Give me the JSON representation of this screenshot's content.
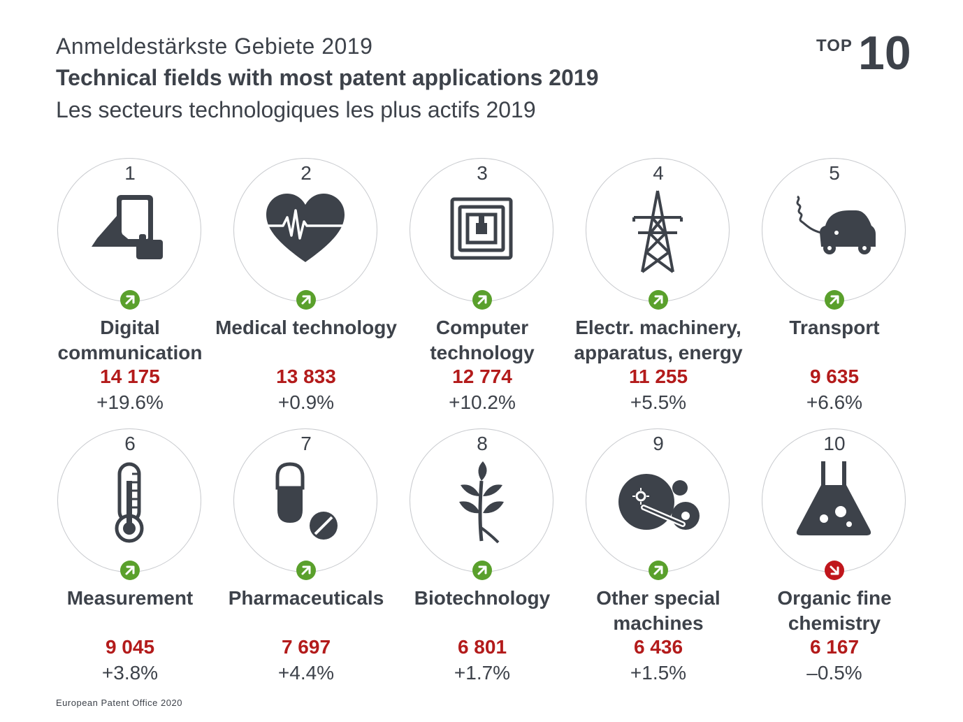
{
  "header": {
    "title_de": "Anmeldestärkste Gebiete 2019",
    "title_en": "Technical fields with most patent applications 2019",
    "title_fr": "Les secteurs technologiques les plus actifs 2019",
    "badge_small": "TOP",
    "badge_big": "10"
  },
  "footer": {
    "source": "European Patent Office 2020"
  },
  "colors": {
    "text": "#3d424a",
    "value": "#b31b1b",
    "trend_up": "#5aa02c",
    "trend_down": "#c0161c",
    "circle_border": "#c9cbcf"
  },
  "chart_data": {
    "type": "table",
    "columns": [
      "rank",
      "field",
      "applications",
      "change"
    ],
    "rows": [
      {
        "rank": "1",
        "field": "Digital communication",
        "value": "14 175",
        "change": "+19.6%",
        "trend": "up",
        "icon": "tablet-hand-icon"
      },
      {
        "rank": "2",
        "field": "Medical technology",
        "value": "13 833",
        "change": "+0.9%",
        "trend": "up",
        "icon": "heartbeat-icon"
      },
      {
        "rank": "3",
        "field": "Computer technology",
        "value": "12 774",
        "change": "+10.2%",
        "trend": "up",
        "icon": "chip-icon"
      },
      {
        "rank": "4",
        "field": "Electr. machinery, apparatus, energy",
        "value": "11 255",
        "change": "+5.5%",
        "trend": "up",
        "icon": "power-pylon-icon"
      },
      {
        "rank": "5",
        "field": "Transport",
        "value": "9 635",
        "change": "+6.6%",
        "trend": "up",
        "icon": "electric-car-icon"
      },
      {
        "rank": "6",
        "field": "Measurement",
        "value": "9 045",
        "change": "+3.8%",
        "trend": "up",
        "icon": "thermometer-icon"
      },
      {
        "rank": "7",
        "field": "Pharmaceuticals",
        "value": "7 697",
        "change": "+4.4%",
        "trend": "up",
        "icon": "pills-icon"
      },
      {
        "rank": "8",
        "field": "Biotechnology",
        "value": "6 801",
        "change": "+1.7%",
        "trend": "up",
        "icon": "leaf-branch-icon"
      },
      {
        "rank": "9",
        "field": "Other special machines",
        "value": "6 436",
        "change": "+1.5%",
        "trend": "up",
        "icon": "machine-wheels-icon"
      },
      {
        "rank": "10",
        "field": "Organic fine chemistry",
        "value": "6 167",
        "change": "–0.5%",
        "trend": "down",
        "icon": "flask-icon"
      }
    ]
  }
}
